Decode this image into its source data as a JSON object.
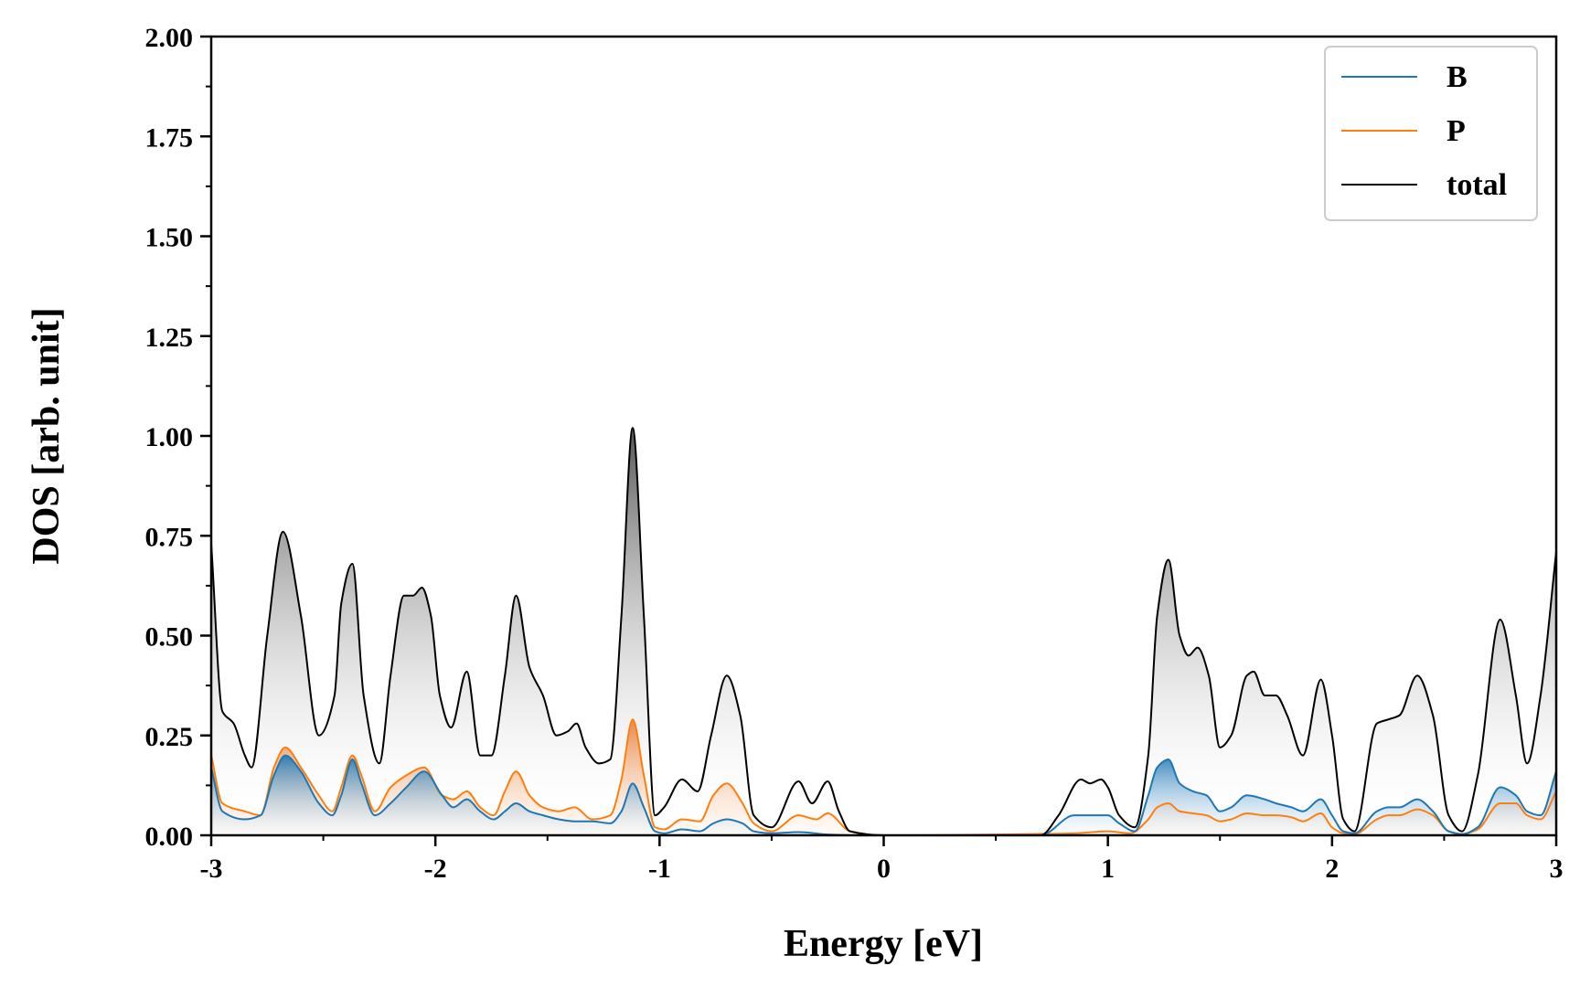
{
  "chart_data": {
    "type": "line",
    "xlabel": "Energy [eV]",
    "ylabel": "DOS [arb. unit]",
    "xlim": [
      -3,
      3
    ],
    "ylim": [
      0,
      2
    ],
    "xticks": [
      -3,
      -2,
      -1,
      0,
      1,
      2,
      3
    ],
    "xtick_labels": [
      "-3",
      "-2",
      "-1",
      "0",
      "1",
      "2",
      "3"
    ],
    "yticks": [
      0,
      0.25,
      0.5,
      0.75,
      1.0,
      1.25,
      1.5,
      1.75,
      2.0
    ],
    "ytick_labels": [
      "0.00",
      "0.25",
      "0.50",
      "0.75",
      "1.00",
      "1.25",
      "1.50",
      "1.75",
      "2.00"
    ],
    "grid": false,
    "legend_position": "top-right",
    "series": [
      {
        "name": "B",
        "color": "#1f77b4",
        "x": [
          -3.0,
          -2.95,
          -2.85,
          -2.78,
          -2.72,
          -2.67,
          -2.6,
          -2.52,
          -2.46,
          -2.42,
          -2.37,
          -2.33,
          -2.27,
          -2.2,
          -2.13,
          -2.05,
          -1.97,
          -1.92,
          -1.86,
          -1.8,
          -1.74,
          -1.69,
          -1.64,
          -1.58,
          -1.52,
          -1.45,
          -1.38,
          -1.3,
          -1.22,
          -1.17,
          -1.12,
          -1.07,
          -1.02,
          -0.98,
          -0.9,
          -0.82,
          -0.76,
          -0.7,
          -0.63,
          -0.58,
          -0.5,
          -0.38,
          -0.25,
          -0.15,
          0.0,
          0.7,
          0.85,
          0.9,
          1.0,
          1.05,
          1.12,
          1.18,
          1.22,
          1.27,
          1.32,
          1.38,
          1.44,
          1.5,
          1.55,
          1.62,
          1.7,
          1.75,
          1.82,
          1.87,
          1.95,
          2.0,
          2.05,
          2.1,
          2.2,
          2.25,
          2.3,
          2.38,
          2.45,
          2.52,
          2.58,
          2.65,
          2.75,
          2.82,
          2.87,
          2.93,
          3.0
        ],
        "values": [
          0.17,
          0.06,
          0.04,
          0.05,
          0.15,
          0.2,
          0.16,
          0.08,
          0.05,
          0.1,
          0.19,
          0.13,
          0.05,
          0.08,
          0.12,
          0.16,
          0.1,
          0.07,
          0.09,
          0.06,
          0.04,
          0.06,
          0.08,
          0.06,
          0.05,
          0.04,
          0.035,
          0.035,
          0.03,
          0.06,
          0.13,
          0.07,
          0.01,
          0.005,
          0.015,
          0.01,
          0.03,
          0.04,
          0.03,
          0.01,
          0.005,
          0.008,
          0.002,
          0.0,
          0.0,
          0.0,
          0.05,
          0.05,
          0.05,
          0.03,
          0.01,
          0.1,
          0.17,
          0.19,
          0.13,
          0.11,
          0.1,
          0.06,
          0.07,
          0.1,
          0.09,
          0.08,
          0.07,
          0.06,
          0.09,
          0.05,
          0.01,
          0.005,
          0.06,
          0.07,
          0.07,
          0.09,
          0.06,
          0.01,
          0.003,
          0.02,
          0.12,
          0.1,
          0.06,
          0.05,
          0.16
        ]
      },
      {
        "name": "P",
        "color": "#ff7f0e",
        "x": [
          -3.0,
          -2.95,
          -2.85,
          -2.78,
          -2.72,
          -2.67,
          -2.6,
          -2.52,
          -2.46,
          -2.42,
          -2.37,
          -2.33,
          -2.27,
          -2.2,
          -2.13,
          -2.05,
          -1.97,
          -1.92,
          -1.86,
          -1.8,
          -1.74,
          -1.69,
          -1.64,
          -1.58,
          -1.52,
          -1.45,
          -1.38,
          -1.3,
          -1.22,
          -1.17,
          -1.12,
          -1.07,
          -1.02,
          -0.98,
          -0.9,
          -0.82,
          -0.76,
          -0.7,
          -0.63,
          -0.58,
          -0.5,
          -0.38,
          -0.3,
          -0.25,
          -0.15,
          0.0,
          0.85,
          1.0,
          1.1,
          1.18,
          1.22,
          1.27,
          1.32,
          1.38,
          1.44,
          1.5,
          1.55,
          1.62,
          1.7,
          1.75,
          1.82,
          1.87,
          1.95,
          2.0,
          2.05,
          2.1,
          2.2,
          2.25,
          2.3,
          2.38,
          2.45,
          2.52,
          2.58,
          2.65,
          2.75,
          2.82,
          2.87,
          2.93,
          3.0
        ],
        "values": [
          0.2,
          0.08,
          0.06,
          0.05,
          0.17,
          0.22,
          0.17,
          0.1,
          0.06,
          0.12,
          0.2,
          0.15,
          0.06,
          0.12,
          0.15,
          0.17,
          0.1,
          0.09,
          0.11,
          0.07,
          0.05,
          0.11,
          0.16,
          0.1,
          0.07,
          0.06,
          0.07,
          0.04,
          0.05,
          0.14,
          0.29,
          0.15,
          0.02,
          0.015,
          0.04,
          0.035,
          0.1,
          0.13,
          0.08,
          0.03,
          0.01,
          0.05,
          0.04,
          0.055,
          0.01,
          0.0,
          0.005,
          0.01,
          0.005,
          0.04,
          0.07,
          0.08,
          0.06,
          0.055,
          0.05,
          0.035,
          0.04,
          0.055,
          0.05,
          0.05,
          0.045,
          0.035,
          0.055,
          0.02,
          0.005,
          0.003,
          0.04,
          0.05,
          0.05,
          0.065,
          0.05,
          0.01,
          0.003,
          0.015,
          0.08,
          0.08,
          0.05,
          0.04,
          0.11
        ]
      },
      {
        "name": "total",
        "color": "#000000",
        "x": [
          -3.0,
          -2.95,
          -2.9,
          -2.85,
          -2.82,
          -2.75,
          -2.68,
          -2.6,
          -2.52,
          -2.45,
          -2.42,
          -2.37,
          -2.32,
          -2.25,
          -2.2,
          -2.14,
          -2.1,
          -2.06,
          -2.02,
          -1.98,
          -1.93,
          -1.86,
          -1.8,
          -1.75,
          -1.69,
          -1.64,
          -1.58,
          -1.52,
          -1.46,
          -1.41,
          -1.37,
          -1.33,
          -1.27,
          -1.22,
          -1.17,
          -1.12,
          -1.07,
          -1.02,
          -0.98,
          -0.9,
          -0.83,
          -0.77,
          -0.7,
          -0.64,
          -0.58,
          -0.5,
          -0.38,
          -0.32,
          -0.25,
          -0.2,
          -0.15,
          0.0,
          0.7,
          0.78,
          0.88,
          0.92,
          0.97,
          1.0,
          1.05,
          1.12,
          1.18,
          1.22,
          1.27,
          1.32,
          1.36,
          1.4,
          1.45,
          1.5,
          1.55,
          1.62,
          1.65,
          1.7,
          1.75,
          1.8,
          1.87,
          1.95,
          2.0,
          2.05,
          2.1,
          2.2,
          2.25,
          2.3,
          2.38,
          2.45,
          2.52,
          2.58,
          2.65,
          2.75,
          2.82,
          2.87,
          2.93,
          3.0
        ],
        "values": [
          0.73,
          0.31,
          0.28,
          0.2,
          0.17,
          0.5,
          0.76,
          0.55,
          0.25,
          0.35,
          0.58,
          0.68,
          0.35,
          0.18,
          0.4,
          0.6,
          0.6,
          0.62,
          0.55,
          0.35,
          0.27,
          0.41,
          0.2,
          0.2,
          0.4,
          0.6,
          0.42,
          0.35,
          0.25,
          0.26,
          0.28,
          0.22,
          0.18,
          0.19,
          0.55,
          1.02,
          0.55,
          0.05,
          0.07,
          0.14,
          0.11,
          0.25,
          0.4,
          0.3,
          0.05,
          0.02,
          0.135,
          0.08,
          0.135,
          0.06,
          0.01,
          0.0,
          0.0,
          0.05,
          0.14,
          0.13,
          0.14,
          0.12,
          0.05,
          0.02,
          0.2,
          0.55,
          0.69,
          0.5,
          0.45,
          0.47,
          0.4,
          0.22,
          0.25,
          0.4,
          0.41,
          0.35,
          0.35,
          0.3,
          0.2,
          0.39,
          0.25,
          0.04,
          0.01,
          0.28,
          0.29,
          0.3,
          0.4,
          0.3,
          0.05,
          0.01,
          0.15,
          0.54,
          0.35,
          0.18,
          0.35,
          0.71
        ]
      }
    ]
  }
}
